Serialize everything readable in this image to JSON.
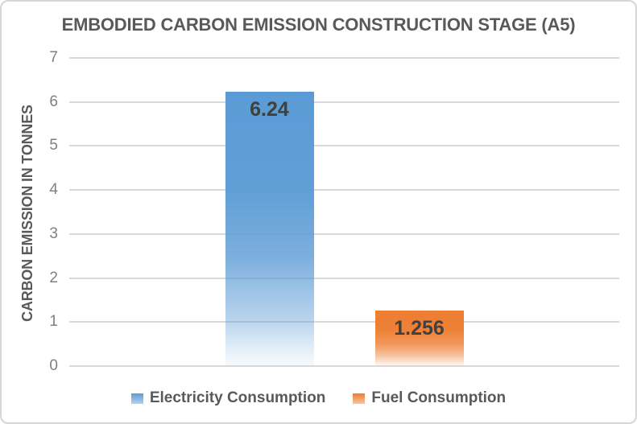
{
  "chart_data": {
    "type": "bar",
    "title": "EMBODIED CARBON EMISSION CONSTRUCTION STAGE (A5)",
    "ylabel": "CARBON EMISSION IN TONNES",
    "xlabel": "",
    "ylim": [
      0,
      7
    ],
    "yticks": [
      0,
      1,
      2,
      3,
      4,
      5,
      6,
      7
    ],
    "grid": true,
    "legend_position": "bottom",
    "series": [
      {
        "name": "Electricity Consumption",
        "value": 6.24,
        "label": "6.24",
        "color": "#5B9BD5"
      },
      {
        "name": "Fuel Consumption",
        "value": 1.256,
        "label": "1.256",
        "color": "#ED7D31"
      }
    ]
  },
  "style": {
    "title_color": "#595959",
    "axis_text_color": "#7F7F7F",
    "gridline_color": "#D9D9D9",
    "value_label_color": "#404040",
    "frame_border_color": "#D6D6D6",
    "background": "#FFFFFF"
  }
}
